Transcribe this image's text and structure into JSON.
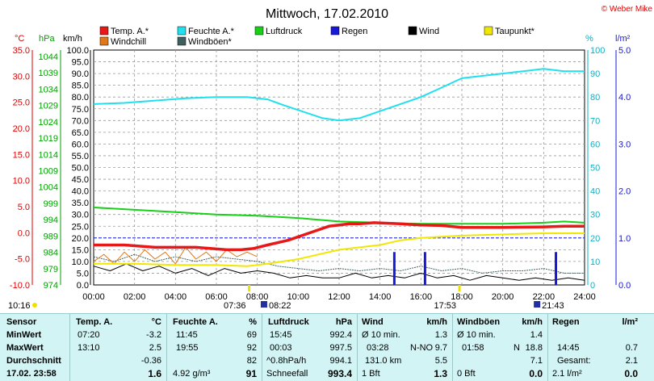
{
  "chart_data": {
    "type": "line",
    "title": "Mittwoch, 17.02.2010",
    "copyright": "© Weber Mike",
    "x_ticks": [
      "00:00",
      "02:00",
      "04:00",
      "06:00",
      "08:00",
      "10:00",
      "12:00",
      "14:00",
      "16:00",
      "18:00",
      "20:00",
      "22:00",
      "24:00"
    ],
    "x_range_hours": [
      0,
      24
    ],
    "axis_units": {
      "temp": "°C",
      "pressure": "hPa",
      "wind": "km/h",
      "humidity": "%",
      "rain": "l/m²"
    },
    "axes": {
      "temp_ticks": [
        "35.0",
        "30.0",
        "25.0",
        "20.0",
        "15.0",
        "10.0",
        "5.0",
        "0.0",
        "-5.0",
        "-10.0"
      ],
      "pressure_ticks": [
        "1044",
        "1039",
        "1034",
        "1029",
        "1024",
        "1019",
        "1014",
        "1009",
        "1004",
        "999",
        "994",
        "989",
        "984",
        "979",
        "974"
      ],
      "wind_ticks": [
        "100.0",
        "95.0",
        "90.0",
        "85.0",
        "80.0",
        "75.0",
        "70.0",
        "65.0",
        "60.0",
        "55.0",
        "50.0",
        "45.0",
        "40.0",
        "35.0",
        "30.0",
        "25.0",
        "20.0",
        "15.0",
        "10.0",
        "5.0",
        "0.0"
      ],
      "humidity_ticks": [
        "100",
        "90",
        "80",
        "70",
        "60",
        "50",
        "40",
        "30",
        "20",
        "10",
        "0"
      ],
      "rain_ticks": [
        "5.0",
        "4.0",
        "3.0",
        "2.0",
        "1.0",
        "0.0"
      ],
      "wind_range": [
        0,
        100
      ],
      "rain_range": [
        0,
        5
      ]
    },
    "grid": true,
    "legend": [
      {
        "label": "Temp. A.*",
        "color": "#e81818"
      },
      {
        "label": "Feuchte A.*",
        "color": "#20e0f0"
      },
      {
        "label": "Luftdruck",
        "color": "#18d018"
      },
      {
        "label": "Regen",
        "color": "#1818d8"
      },
      {
        "label": "Wind",
        "color": "#000000"
      },
      {
        "label": "Taupunkt*",
        "color": "#f0e800"
      },
      {
        "label": "Windchill",
        "color": "#e07818"
      },
      {
        "label": "Windböen*",
        "color": "#406060"
      }
    ],
    "series": [
      {
        "name": "Temp. A.*",
        "scale": "wind",
        "color": "#e81818",
        "points": [
          [
            0,
            17
          ],
          [
            1.5,
            17
          ],
          [
            3,
            16
          ],
          [
            5,
            16
          ],
          [
            6.5,
            15
          ],
          [
            7.2,
            15
          ],
          [
            7.8,
            15.5
          ],
          [
            8.5,
            17
          ],
          [
            9.5,
            19
          ],
          [
            10.5,
            22
          ],
          [
            11.5,
            25
          ],
          [
            12.5,
            26
          ],
          [
            13,
            26
          ],
          [
            13.7,
            26.5
          ],
          [
            15,
            26
          ],
          [
            16,
            25.5
          ],
          [
            17,
            25.3
          ],
          [
            18,
            24.5
          ],
          [
            20,
            24.5
          ],
          [
            22,
            24.7
          ],
          [
            23,
            25
          ],
          [
            24,
            25
          ]
        ]
      },
      {
        "name": "Feuchte A.*",
        "scale": "wind",
        "color": "#20e0f0",
        "points": [
          [
            0,
            77
          ],
          [
            1.5,
            77.5
          ],
          [
            3,
            78.5
          ],
          [
            4.5,
            79.5
          ],
          [
            6,
            80
          ],
          [
            7.5,
            80
          ],
          [
            8.5,
            79
          ],
          [
            9.3,
            76.5
          ],
          [
            10.5,
            73
          ],
          [
            11.2,
            71
          ],
          [
            12,
            70
          ],
          [
            13,
            71
          ],
          [
            14,
            74
          ],
          [
            15,
            77
          ],
          [
            16,
            80
          ],
          [
            17,
            84
          ],
          [
            18,
            88
          ],
          [
            19,
            89
          ],
          [
            20,
            90
          ],
          [
            21,
            91
          ],
          [
            22,
            92
          ],
          [
            23,
            91
          ],
          [
            24,
            91
          ]
        ]
      },
      {
        "name": "Luftdruck",
        "scale": "wind",
        "color": "#18d018",
        "points": [
          [
            0,
            33
          ],
          [
            2,
            32
          ],
          [
            4,
            31
          ],
          [
            6,
            30
          ],
          [
            8,
            29.5
          ],
          [
            10,
            28.5
          ],
          [
            12,
            27
          ],
          [
            14,
            26.5
          ],
          [
            16,
            26
          ],
          [
            18,
            26
          ],
          [
            20,
            26
          ],
          [
            22,
            26.5
          ],
          [
            23,
            27
          ],
          [
            24,
            26.5
          ]
        ]
      },
      {
        "name": "Taupunkt*",
        "scale": "wind",
        "color": "#f0e800",
        "points": [
          [
            0,
            9
          ],
          [
            2,
            9
          ],
          [
            4,
            8.5
          ],
          [
            6,
            8.5
          ],
          [
            7.5,
            8
          ],
          [
            8.5,
            9
          ],
          [
            10,
            11
          ],
          [
            11,
            13
          ],
          [
            12,
            15
          ],
          [
            13,
            16
          ],
          [
            14,
            17
          ],
          [
            15,
            19
          ],
          [
            16,
            20
          ],
          [
            17,
            20.5
          ],
          [
            18,
            21
          ],
          [
            20,
            21.5
          ],
          [
            22,
            22
          ],
          [
            24,
            22
          ]
        ]
      },
      {
        "name": "Wind",
        "scale": "wind",
        "color": "#000000",
        "points": [
          [
            0,
            8
          ],
          [
            0.8,
            6
          ],
          [
            1.6,
            9
          ],
          [
            2.4,
            6
          ],
          [
            3.2,
            8
          ],
          [
            4,
            5
          ],
          [
            4.8,
            7
          ],
          [
            5.6,
            4
          ],
          [
            6.4,
            7
          ],
          [
            7.2,
            5
          ],
          [
            8,
            6
          ],
          [
            8.8,
            5
          ],
          [
            9.6,
            3
          ],
          [
            10.4,
            4
          ],
          [
            11.2,
            3
          ],
          [
            12,
            3
          ],
          [
            12.8,
            5
          ],
          [
            13.6,
            3
          ],
          [
            14.4,
            4
          ],
          [
            15.2,
            3
          ],
          [
            16,
            5
          ],
          [
            16.8,
            3
          ],
          [
            17.6,
            4
          ],
          [
            18.4,
            2
          ],
          [
            19.2,
            4
          ],
          [
            20,
            3
          ],
          [
            20.8,
            2
          ],
          [
            21.6,
            3
          ],
          [
            22.4,
            2
          ],
          [
            23.2,
            3
          ],
          [
            24,
            2
          ]
        ]
      },
      {
        "name": "Windchill",
        "scale": "wind",
        "color": "#e07818",
        "points": [
          [
            0,
            10
          ],
          [
            0.5,
            13
          ],
          [
            1,
            9
          ],
          [
            1.5,
            14
          ],
          [
            2,
            10
          ],
          [
            2.5,
            15
          ],
          [
            3,
            11
          ],
          [
            3.5,
            14
          ],
          [
            4,
            9
          ],
          [
            4.5,
            16
          ],
          [
            5,
            11
          ],
          [
            5.5,
            14
          ],
          [
            6,
            10
          ],
          [
            6.5,
            15
          ],
          [
            7,
            12
          ],
          [
            7.5,
            14
          ],
          [
            8,
            12
          ]
        ]
      },
      {
        "name": "Windböen*",
        "scale": "wind",
        "color": "#406060",
        "points": [
          [
            0,
            12
          ],
          [
            1,
            10
          ],
          [
            2,
            13
          ],
          [
            3,
            10
          ],
          [
            4,
            12
          ],
          [
            5,
            10
          ],
          [
            6,
            12
          ],
          [
            7,
            11
          ],
          [
            8,
            10
          ],
          [
            9,
            8
          ],
          [
            10,
            7
          ],
          [
            11,
            6
          ],
          [
            12,
            7
          ],
          [
            13,
            6
          ],
          [
            14,
            7
          ],
          [
            15,
            6
          ],
          [
            16,
            8
          ],
          [
            17,
            6
          ],
          [
            18,
            7
          ],
          [
            19,
            5
          ],
          [
            20,
            6
          ],
          [
            21,
            6
          ],
          [
            22,
            7
          ],
          [
            23,
            5
          ],
          [
            24,
            5
          ]
        ]
      }
    ],
    "rain_bars": [
      [
        14.7,
        0.7
      ],
      [
        16.2,
        0.7
      ],
      [
        22.6,
        0.7
      ]
    ],
    "zero_line_value": 20,
    "time_markers": {
      "sunrise": "07:36",
      "sunset": "17:53",
      "moonrise": "08:22",
      "moonset": "21:43",
      "start": "10:16"
    }
  },
  "stats": {
    "sensor": {
      "head": "Sensor",
      "rows": [
        "MinWert",
        "MaxWert",
        "Durchschnitt"
      ],
      "last": "17.02. 23:58"
    },
    "temp": {
      "head": "Temp. A.",
      "unit": "°C",
      "rows": [
        [
          "07:20",
          "-3.2"
        ],
        [
          "13:10",
          "2.5"
        ],
        [
          "",
          "-0.36"
        ]
      ],
      "last": "1.6"
    },
    "feuchte": {
      "head": "Feuchte A.",
      "unit": "%",
      "rows": [
        [
          "11:45",
          "69"
        ],
        [
          "19:55",
          "92"
        ],
        [
          "",
          "82"
        ]
      ],
      "last_left": "4.92 g/m³",
      "last": "91"
    },
    "luftdruck": {
      "head": "Luftdruck",
      "unit": "hPa",
      "rows": [
        [
          "15:45",
          "992.4"
        ],
        [
          "00:03",
          "997.5"
        ],
        [
          "^0.8hPa/h",
          "994.1"
        ]
      ],
      "last_left": "Schneefall",
      "last": "993.4"
    },
    "wind": {
      "head": "Wind",
      "unit": "km/h",
      "rows": [
        [
          "Ø 10 min.",
          "",
          "1.3"
        ],
        [
          "03:28",
          "N-NO",
          "9.7"
        ],
        [
          "131.0 km",
          "",
          "5.5"
        ]
      ],
      "last_left": "1 Bft",
      "last": "1.3"
    },
    "windboeen": {
      "head": "Windböen",
      "unit": "km/h",
      "rows": [
        [
          "Ø 10 min.",
          "",
          "1.4"
        ],
        [
          "01:58",
          "N",
          "18.8"
        ],
        [
          "",
          "",
          "7.1"
        ]
      ],
      "last_left": "0 Bft",
      "last": "0.0"
    },
    "regen": {
      "head": "Regen",
      "unit": "l/m²",
      "rows": [
        [
          "",
          ""
        ],
        [
          "14:45",
          "0.7"
        ],
        [
          "Gesamt:",
          "2.1"
        ]
      ],
      "last_left": "2.1 l/m²",
      "last": "0.0"
    }
  }
}
